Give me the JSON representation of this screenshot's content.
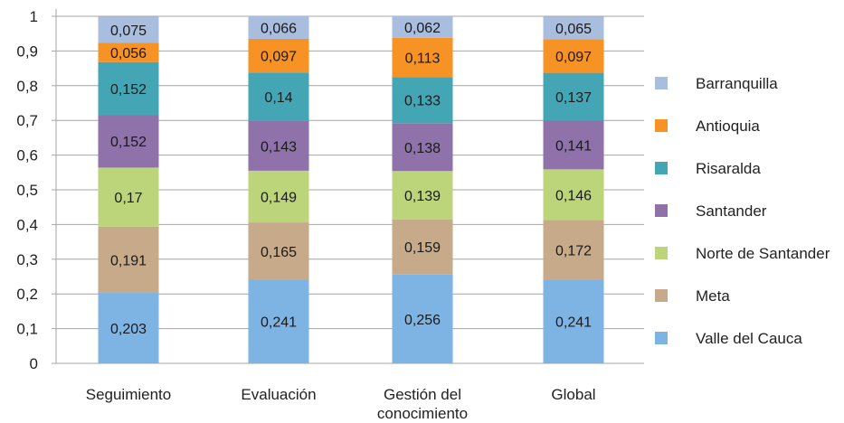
{
  "chart_data": {
    "type": "bar",
    "stacked": true,
    "categories": [
      "Seguimiento",
      "Evaluación",
      "Gestión del conocimiento",
      "Global"
    ],
    "category_lines": [
      [
        "Seguimiento"
      ],
      [
        "Evaluación"
      ],
      [
        "Gestión del",
        "conocimiento"
      ],
      [
        "Global"
      ]
    ],
    "series": [
      {
        "name": "Valle del Cauca",
        "color": "#7eb4e4",
        "values": [
          0.203,
          0.241,
          0.256,
          0.241
        ],
        "labels": [
          "0,203",
          "0,241",
          "0,256",
          "0,241"
        ]
      },
      {
        "name": "Meta",
        "color": "#c6aa8a",
        "values": [
          0.191,
          0.165,
          0.159,
          0.172
        ],
        "labels": [
          "0,191",
          "0,165",
          "0,159",
          "0,172"
        ]
      },
      {
        "name": "Norte de Santander",
        "color": "#bcd57b",
        "values": [
          0.17,
          0.149,
          0.139,
          0.146
        ],
        "labels": [
          "0,17",
          "0,149",
          "0,139",
          "0,146"
        ]
      },
      {
        "name": "Santander",
        "color": "#8e72a9",
        "values": [
          0.152,
          0.143,
          0.138,
          0.141
        ],
        "labels": [
          "0,152",
          "0,143",
          "0,138",
          "0,141"
        ]
      },
      {
        "name": "Risaralda",
        "color": "#44a6b4",
        "values": [
          0.152,
          0.14,
          0.133,
          0.137
        ],
        "labels": [
          "0,152",
          "0,14",
          "0,133",
          "0,137"
        ]
      },
      {
        "name": "Antioquia",
        "color": "#f79225",
        "values": [
          0.056,
          0.097,
          0.113,
          0.097
        ],
        "labels": [
          "0,056",
          "0,097",
          "0,113",
          "0,097"
        ]
      },
      {
        "name": "Barranquilla",
        "color": "#a9bddf",
        "values": [
          0.075,
          0.066,
          0.062,
          0.065
        ],
        "labels": [
          "0,075",
          "0,066",
          "0,062",
          "0,065"
        ]
      }
    ],
    "ylim": [
      0,
      1
    ],
    "yticks": [
      0,
      0.1,
      0.2,
      0.3,
      0.4,
      0.5,
      0.6,
      0.7,
      0.8,
      0.9,
      1
    ],
    "ytick_labels": [
      "0",
      "0,1",
      "0,2",
      "0,3",
      "0,4",
      "0,5",
      "0,6",
      "0,7",
      "0,8",
      "0,9",
      "1"
    ],
    "grid": true,
    "legend_position": "right",
    "legend_order": [
      "Barranquilla",
      "Antioquia",
      "Risaralda",
      "Santander",
      "Norte de Santander",
      "Meta",
      "Valle del Cauca"
    ]
  }
}
